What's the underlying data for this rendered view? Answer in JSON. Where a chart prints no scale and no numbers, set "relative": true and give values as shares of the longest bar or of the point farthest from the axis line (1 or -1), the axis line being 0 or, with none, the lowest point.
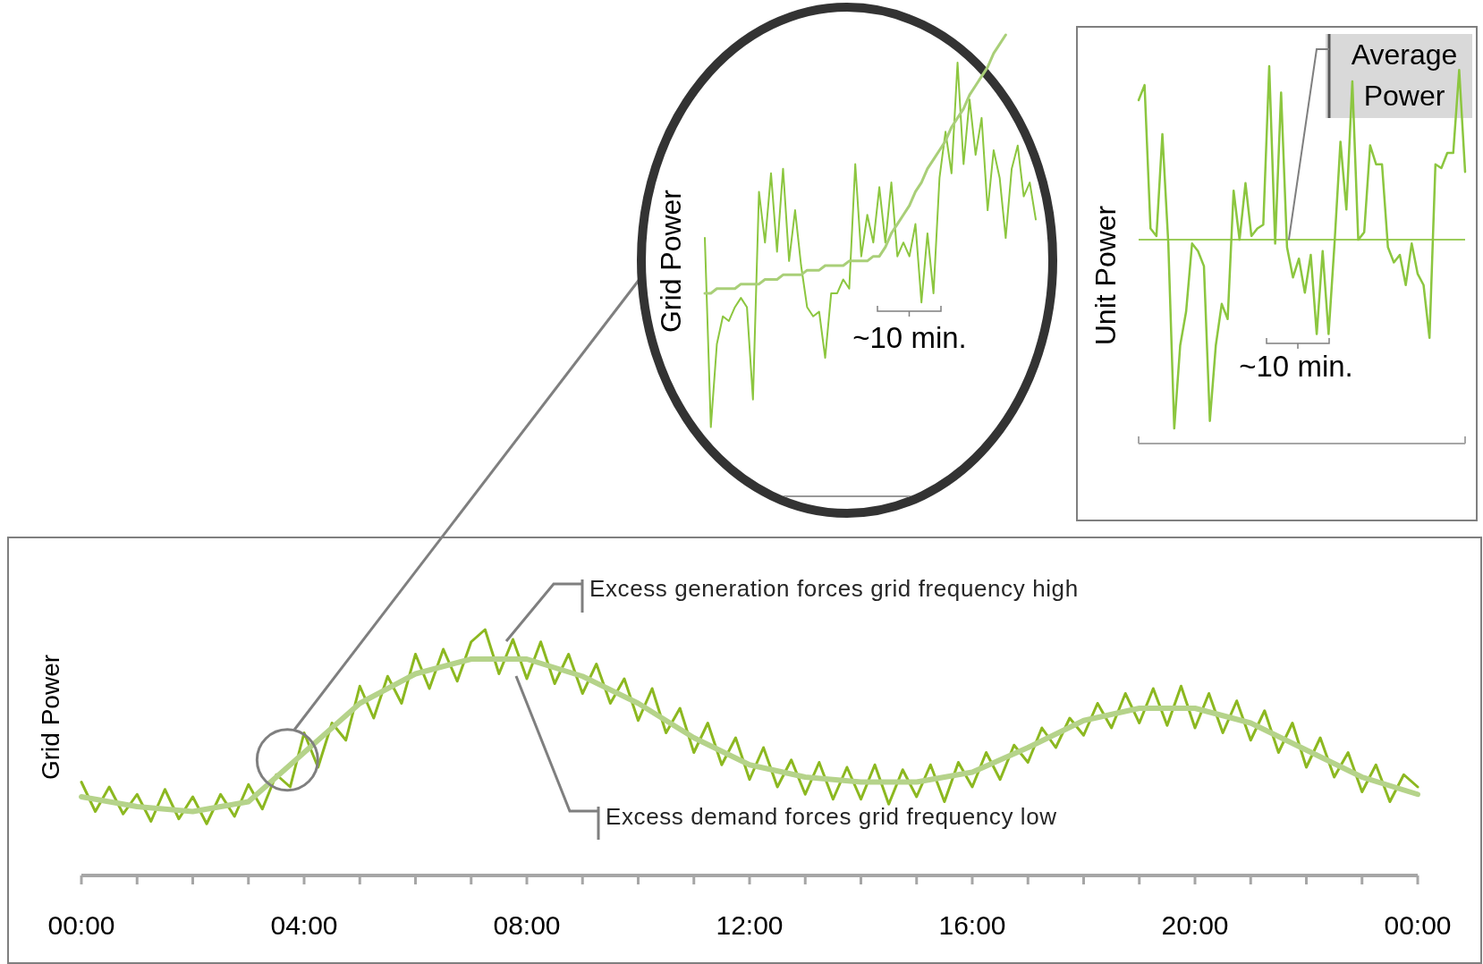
{
  "chart_data": [
    {
      "type": "line",
      "ylabel": "Grid Power",
      "relative": true,
      "xlim": [
        0,
        24
      ],
      "tick_labels": "x",
      "xticks": [
        {
          "value": 0,
          "label": "00:00"
        },
        {
          "value": 1,
          "label": null
        },
        {
          "value": 2,
          "label": null
        },
        {
          "value": 3,
          "label": null
        },
        {
          "value": 4,
          "label": "04:00"
        },
        {
          "value": 5,
          "label": null
        },
        {
          "value": 6,
          "label": null
        },
        {
          "value": 7,
          "label": null
        },
        {
          "value": 8,
          "label": "08:00"
        },
        {
          "value": 9,
          "label": null
        },
        {
          "value": 10,
          "label": null
        },
        {
          "value": 11,
          "label": null
        },
        {
          "value": 12,
          "label": "12:00"
        },
        {
          "value": 13,
          "label": null
        },
        {
          "value": 14,
          "label": null
        },
        {
          "value": 15,
          "label": null
        },
        {
          "value": 16,
          "label": "16:00"
        },
        {
          "value": 17,
          "label": null
        },
        {
          "value": 18,
          "label": null
        },
        {
          "value": 19,
          "label": null
        },
        {
          "value": 20,
          "label": "20:00"
        },
        {
          "value": 21,
          "label": null
        },
        {
          "value": 22,
          "label": null
        },
        {
          "value": 23,
          "label": null
        },
        {
          "value": 24,
          "label": "00:00"
        }
      ],
      "annotations": [
        "Excess generation forces grid frequency high",
        "Excess demand forces grid frequency low"
      ],
      "series": [
        {
          "color": "#8cb820",
          "x": [
            0,
            0.25,
            0.5,
            0.75,
            1,
            1.25,
            1.5,
            1.75,
            2,
            2.25,
            2.5,
            2.75,
            3,
            3.25,
            3.5,
            3.75,
            4,
            4.25,
            4.5,
            4.75,
            5,
            5.25,
            5.5,
            5.75,
            6,
            6.25,
            6.5,
            6.75,
            7,
            7.25,
            7.5,
            7.75,
            8,
            8.25,
            8.5,
            8.75,
            9,
            9.25,
            9.5,
            9.75,
            10,
            10.25,
            10.5,
            10.75,
            11,
            11.25,
            11.5,
            11.75,
            12,
            12.25,
            12.5,
            12.75,
            13,
            13.25,
            13.5,
            13.75,
            14,
            14.25,
            14.5,
            14.75,
            15,
            15.25,
            15.5,
            15.75,
            16,
            16.25,
            16.5,
            16.75,
            17,
            17.25,
            17.5,
            17.75,
            18,
            18.25,
            18.5,
            18.75,
            19,
            19.25,
            19.5,
            19.75,
            20,
            20.25,
            20.5,
            20.75,
            21,
            21.25,
            21.5,
            21.75,
            22,
            22.25,
            22.5,
            22.75,
            23,
            23.25,
            23.5,
            23.75,
            24
          ],
          "values": [
            0.38,
            0.26,
            0.36,
            0.25,
            0.33,
            0.22,
            0.35,
            0.23,
            0.32,
            0.21,
            0.33,
            0.24,
            0.37,
            0.27,
            0.41,
            0.36,
            0.58,
            0.44,
            0.62,
            0.55,
            0.77,
            0.64,
            0.81,
            0.7,
            0.9,
            0.76,
            0.92,
            0.79,
            0.95,
            1.0,
            0.82,
            0.96,
            0.8,
            0.95,
            0.78,
            0.9,
            0.74,
            0.86,
            0.7,
            0.8,
            0.63,
            0.76,
            0.58,
            0.68,
            0.5,
            0.62,
            0.45,
            0.56,
            0.39,
            0.52,
            0.36,
            0.47,
            0.33,
            0.46,
            0.31,
            0.44,
            0.31,
            0.45,
            0.29,
            0.43,
            0.32,
            0.45,
            0.3,
            0.46,
            0.36,
            0.5,
            0.39,
            0.53,
            0.46,
            0.6,
            0.52,
            0.64,
            0.57,
            0.7,
            0.6,
            0.74,
            0.62,
            0.76,
            0.61,
            0.77,
            0.6,
            0.74,
            0.58,
            0.71,
            0.55,
            0.67,
            0.5,
            0.62,
            0.44,
            0.56,
            0.4,
            0.5,
            0.34,
            0.45,
            0.3,
            0.41,
            0.36
          ]
        },
        {
          "color": "#b5d38a",
          "x": [
            0,
            1,
            2,
            3,
            4,
            5,
            6,
            7,
            8,
            9,
            10,
            11,
            12,
            13,
            14,
            15,
            16,
            17,
            18,
            19,
            20,
            21,
            22,
            23,
            24
          ],
          "values": [
            0.32,
            0.28,
            0.26,
            0.3,
            0.5,
            0.7,
            0.82,
            0.88,
            0.88,
            0.81,
            0.7,
            0.56,
            0.45,
            0.4,
            0.38,
            0.38,
            0.42,
            0.52,
            0.63,
            0.68,
            0.68,
            0.62,
            0.51,
            0.4,
            0.33
          ]
        }
      ]
    },
    {
      "type": "line",
      "ylabel": "Grid Power",
      "relative": true,
      "tick_labels": false,
      "categories": [
        null,
        null,
        null,
        null,
        null,
        null,
        null,
        null,
        null,
        null,
        null,
        null,
        null,
        null,
        null,
        null,
        null,
        null,
        null,
        null,
        null,
        null,
        null,
        null,
        null,
        null,
        null,
        null,
        null,
        null,
        null,
        null,
        null,
        null,
        null,
        null,
        null,
        null,
        null,
        null,
        null,
        null,
        null,
        null,
        null,
        null,
        null,
        null,
        null,
        null,
        null,
        null,
        null,
        null,
        null,
        null
      ],
      "annotations": [
        "~10 min."
      ],
      "series": [
        {
          "color": "#8cc63f",
          "values": [
            0.56,
            0.15,
            0.33,
            0.39,
            0.38,
            0.41,
            0.43,
            0.41,
            0.21,
            0.66,
            0.55,
            0.7,
            0.53,
            0.71,
            0.51,
            0.62,
            0.5,
            0.41,
            0.39,
            0.4,
            0.3,
            0.44,
            0.44,
            0.47,
            0.45,
            0.72,
            0.52,
            0.61,
            0.55,
            0.67,
            0.55,
            0.68,
            0.52,
            0.55,
            0.52,
            0.59,
            0.42,
            0.57,
            0.44,
            0.69,
            0.79,
            0.7,
            0.94,
            0.72,
            0.86,
            0.74,
            0.82,
            0.62,
            0.75,
            0.69,
            0.56,
            0.71,
            0.76,
            0.65,
            0.68,
            0.6
          ]
        },
        {
          "color": "#a9cf78",
          "values": [
            0.44,
            0.44,
            0.45,
            0.45,
            0.45,
            0.45,
            0.46,
            0.46,
            0.46,
            0.46,
            0.47,
            0.47,
            0.47,
            0.48,
            0.48,
            0.48,
            0.48,
            0.49,
            0.49,
            0.49,
            0.5,
            0.5,
            0.5,
            0.5,
            0.51,
            0.51,
            0.51,
            0.51,
            0.52,
            0.52,
            0.54,
            0.57,
            0.59,
            0.61,
            0.63,
            0.66,
            0.68,
            0.71,
            0.73,
            0.75,
            0.77,
            0.8,
            0.82,
            0.84,
            0.87,
            0.89,
            0.91,
            0.93,
            0.96,
            0.98,
            1.0,
            null,
            null,
            null,
            null,
            null
          ]
        }
      ]
    },
    {
      "type": "line",
      "ylabel": "Unit Power",
      "relative": true,
      "tick_labels": false,
      "categories": [
        null,
        null,
        null,
        null,
        null,
        null,
        null,
        null,
        null,
        null,
        null,
        null,
        null,
        null,
        null,
        null,
        null,
        null,
        null,
        null,
        null,
        null,
        null,
        null,
        null,
        null,
        null,
        null,
        null,
        null,
        null,
        null,
        null,
        null,
        null,
        null,
        null,
        null,
        null,
        null,
        null,
        null,
        null,
        null,
        null,
        null,
        null,
        null,
        null,
        null,
        null,
        null,
        null,
        null,
        null,
        null
      ],
      "annotations": [
        "~10 min."
      ],
      "ref_lines": [
        {
          "axis": "y",
          "value": 0.54,
          "label": "Average Power",
          "color": "#9ccc5c"
        }
      ],
      "series": [
        {
          "color": "#8cc63f",
          "values": [
            0.91,
            0.95,
            0.57,
            0.55,
            0.82,
            0.53,
            0.04,
            0.26,
            0.35,
            0.53,
            0.51,
            0.47,
            0.06,
            0.26,
            0.37,
            0.33,
            0.67,
            0.54,
            0.69,
            0.55,
            0.57,
            0.58,
            1.0,
            0.53,
            0.93,
            0.52,
            0.44,
            0.49,
            0.4,
            0.5,
            0.29,
            0.51,
            0.29,
            0.53,
            0.8,
            0.62,
            0.96,
            0.54,
            0.56,
            0.79,
            0.74,
            0.74,
            0.52,
            0.48,
            0.5,
            0.42,
            0.53,
            0.45,
            0.42,
            0.28,
            0.74,
            0.73,
            0.77,
            0.77,
            0.99,
            0.72
          ]
        }
      ]
    }
  ]
}
